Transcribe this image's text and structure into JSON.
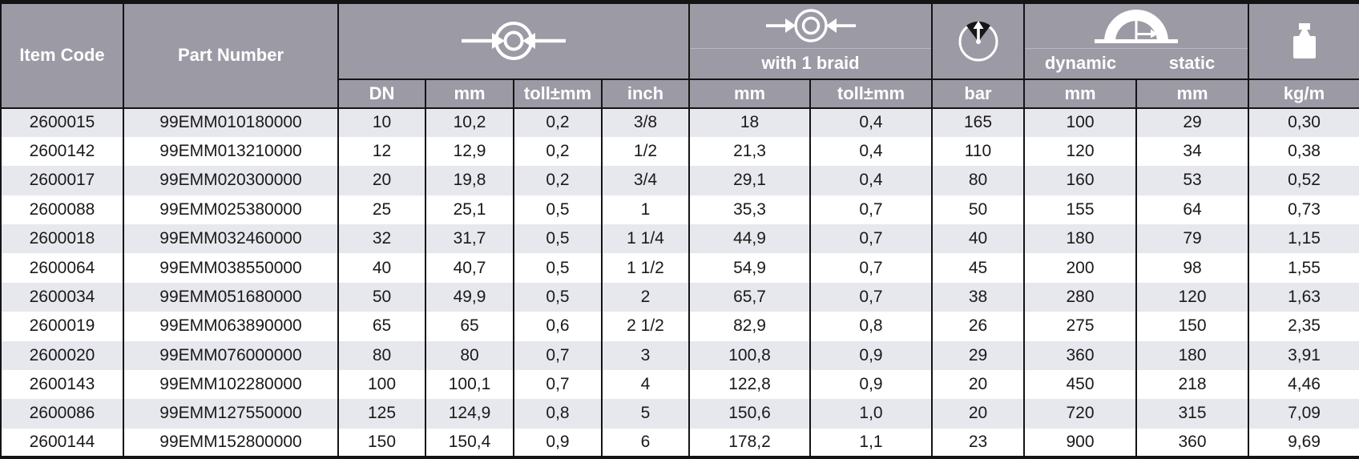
{
  "colors": {
    "header_bg": "#9b9aa5",
    "stripe_bg": "#e7e7ee",
    "border_dark": "#141414",
    "header_text": "#ffffff",
    "body_text": "#1a1a1a"
  },
  "table": {
    "col_keys": [
      "item-code",
      "part-number",
      "dn",
      "inner-mm",
      "inner-toll",
      "inch",
      "braid-mm",
      "braid-toll",
      "bar",
      "dynamic-mm",
      "static-mm",
      "kg-per-m"
    ],
    "header": {
      "item_code": "Item Code",
      "part_number": "Part Number",
      "inner_diameter": {
        "icon": "inner-diameter-icon",
        "subcols": [
          "DN",
          "mm",
          "toll±mm",
          "inch"
        ]
      },
      "with_braid": {
        "icon": "outer-diameter-icon",
        "label": "with 1 braid",
        "subcols": [
          "mm",
          "toll±mm"
        ]
      },
      "pressure": {
        "icon": "pressure-gauge-icon",
        "subcol": "bar"
      },
      "bend_radius": {
        "icon": "bend-radius-icon",
        "labels": [
          "dynamic",
          "static"
        ],
        "subcols": [
          "mm",
          "mm"
        ]
      },
      "weight": {
        "icon": "weight-icon",
        "subcol": "kg/m"
      }
    },
    "rows": [
      [
        "2600015",
        "99EMM010180000",
        "10",
        "10,2",
        "0,2",
        "3/8",
        "18",
        "0,4",
        "165",
        "100",
        "29",
        "0,30"
      ],
      [
        "2600142",
        "99EMM013210000",
        "12",
        "12,9",
        "0,2",
        "1/2",
        "21,3",
        "0,4",
        "110",
        "120",
        "34",
        "0,38"
      ],
      [
        "2600017",
        "99EMM020300000",
        "20",
        "19,8",
        "0,2",
        "3/4",
        "29,1",
        "0,4",
        "80",
        "160",
        "53",
        "0,52"
      ],
      [
        "2600088",
        "99EMM025380000",
        "25",
        "25,1",
        "0,5",
        "1",
        "35,3",
        "0,7",
        "50",
        "155",
        "64",
        "0,73"
      ],
      [
        "2600018",
        "99EMM032460000",
        "32",
        "31,7",
        "0,5",
        "1 1/4",
        "44,9",
        "0,7",
        "40",
        "180",
        "79",
        "1,15"
      ],
      [
        "2600064",
        "99EMM038550000",
        "40",
        "40,7",
        "0,5",
        "1 1/2",
        "54,9",
        "0,7",
        "45",
        "200",
        "98",
        "1,55"
      ],
      [
        "2600034",
        "99EMM051680000",
        "50",
        "49,9",
        "0,5",
        "2",
        "65,7",
        "0,7",
        "38",
        "280",
        "120",
        "1,63"
      ],
      [
        "2600019",
        "99EMM063890000",
        "65",
        "65",
        "0,6",
        "2 1/2",
        "82,9",
        "0,8",
        "26",
        "275",
        "150",
        "2,35"
      ],
      [
        "2600020",
        "99EMM076000000",
        "80",
        "80",
        "0,7",
        "3",
        "100,8",
        "0,9",
        "29",
        "360",
        "180",
        "3,91"
      ],
      [
        "2600143",
        "99EMM102280000",
        "100",
        "100,1",
        "0,7",
        "4",
        "122,8",
        "0,9",
        "20",
        "450",
        "218",
        "4,46"
      ],
      [
        "2600086",
        "99EMM127550000",
        "125",
        "124,9",
        "0,8",
        "5",
        "150,6",
        "1,0",
        "20",
        "720",
        "315",
        "7,09"
      ],
      [
        "2600144",
        "99EMM152800000",
        "150",
        "150,4",
        "0,9",
        "6",
        "178,2",
        "1,1",
        "23",
        "900",
        "360",
        "9,69"
      ]
    ]
  }
}
